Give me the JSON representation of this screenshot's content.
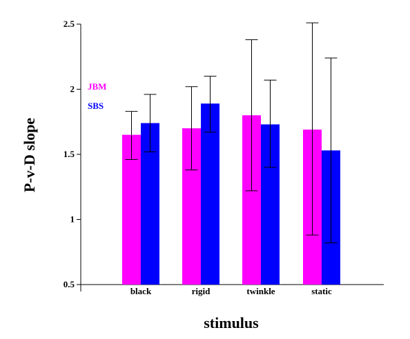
{
  "chart_data": {
    "type": "bar",
    "title": "",
    "xlabel": "stimulus",
    "ylabel": "P-v-D slope",
    "categories": [
      "black",
      "rigid",
      "twinkle",
      "static"
    ],
    "ylim": [
      0.5,
      2.5
    ],
    "yticks": [
      0.5,
      1,
      1.5,
      2,
      2.5
    ],
    "ytick_labels": [
      "0.5",
      "1",
      "1.5",
      "2",
      "2.5"
    ],
    "series": [
      {
        "name": "JBM",
        "color": "#ff00ff",
        "values": [
          1.65,
          1.7,
          1.8,
          1.69
        ],
        "err_low": [
          1.46,
          1.38,
          1.22,
          0.88
        ],
        "err_high": [
          1.83,
          2.02,
          2.38,
          2.51
        ]
      },
      {
        "name": "SBS",
        "color": "#0000ff",
        "values": [
          1.74,
          1.89,
          1.73,
          1.53
        ],
        "err_low": [
          1.52,
          1.67,
          1.4,
          0.82
        ],
        "err_high": [
          1.96,
          2.1,
          2.07,
          2.24
        ]
      }
    ],
    "legend_position": "top-left"
  }
}
